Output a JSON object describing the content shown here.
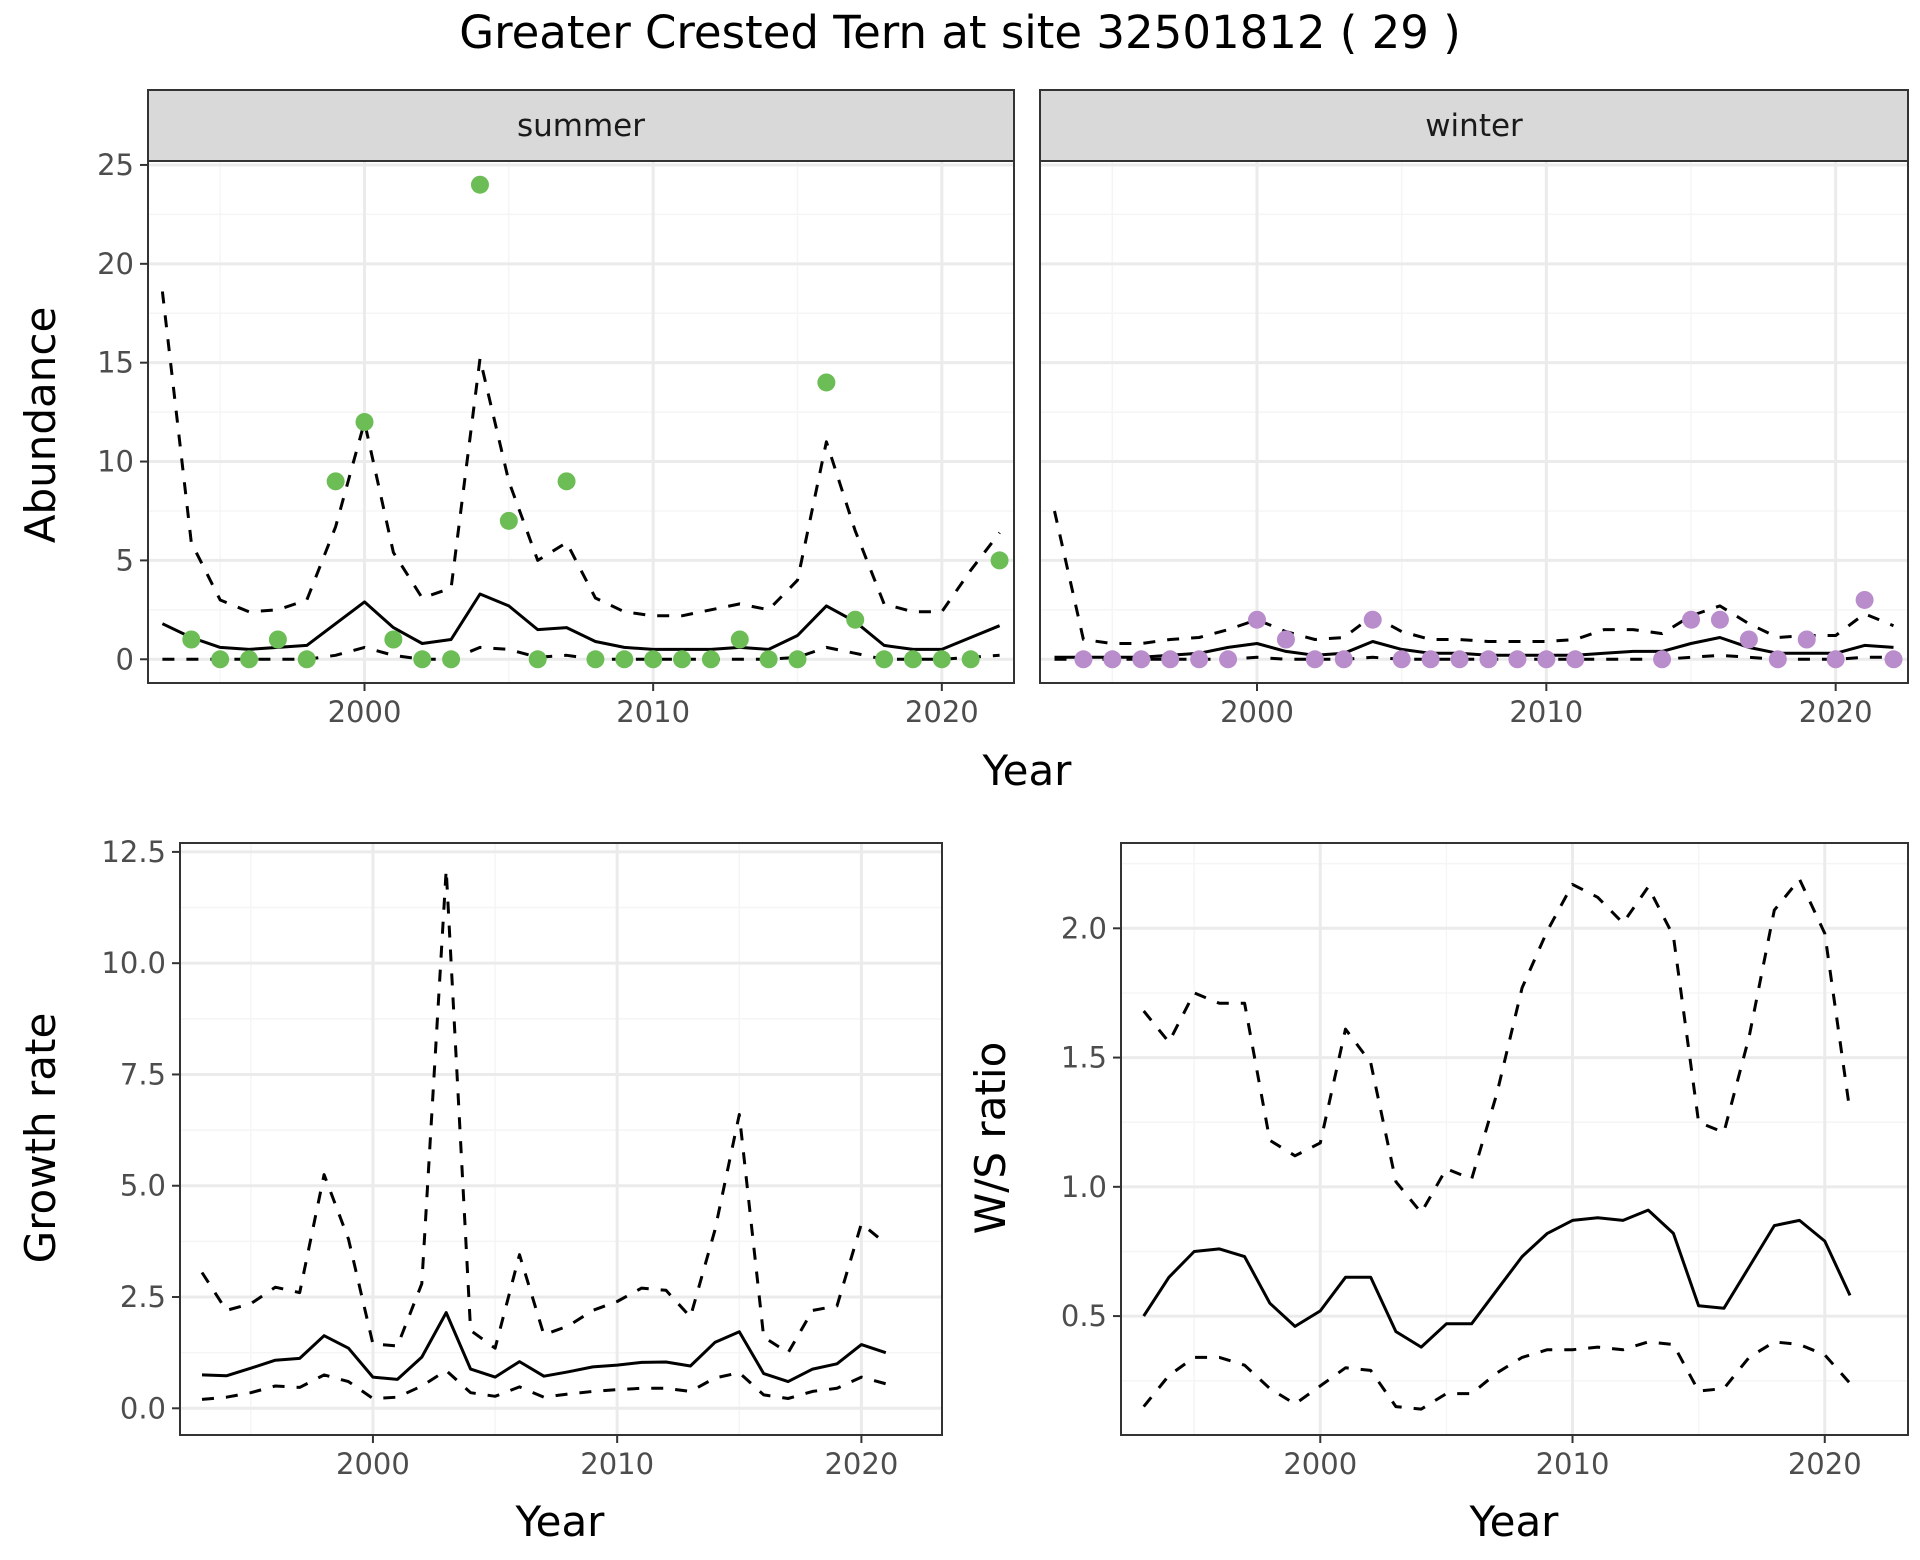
{
  "title": "Greater Crested Tern at site 32501812 ( 29 )",
  "colors": {
    "summer_points": "#6dbd57",
    "winter_points": "#b98ccb",
    "line": "#000000",
    "strip_bg": "#d9d9d9",
    "grid_major": "#ebebeb",
    "grid_minor": "#f5f5f5"
  },
  "chart_data": [
    {
      "id": "abundance-summer",
      "type": "line",
      "panel": "summer",
      "xlabel": "Year",
      "ylabel": "Abundance",
      "xlim": [
        1992.5,
        2022.5
      ],
      "ylim": [
        -1.2,
        25.2
      ],
      "xticks": [
        2000,
        2010,
        2020
      ],
      "yticks": [
        0,
        5,
        10,
        15,
        20,
        25
      ],
      "grid": true,
      "x": [
        1993,
        1994,
        1995,
        1996,
        1997,
        1998,
        1999,
        2000,
        2001,
        2002,
        2003,
        2004,
        2005,
        2006,
        2007,
        2008,
        2009,
        2010,
        2011,
        2012,
        2013,
        2014,
        2015,
        2016,
        2017,
        2018,
        2019,
        2020,
        2021,
        2022
      ],
      "series": [
        {
          "style": "solid",
          "values": [
            1.8,
            1.1,
            0.6,
            0.5,
            0.6,
            0.7,
            1.8,
            2.9,
            1.6,
            0.8,
            1.0,
            3.3,
            2.7,
            1.5,
            1.6,
            0.9,
            0.6,
            0.5,
            0.5,
            0.5,
            0.6,
            0.5,
            1.2,
            2.7,
            1.9,
            0.7,
            0.5,
            0.5,
            1.1,
            1.7
          ]
        },
        {
          "style": "dashed",
          "values": [
            18.6,
            5.9,
            3.0,
            2.4,
            2.5,
            3.0,
            6.7,
            12.0,
            5.4,
            3.1,
            3.6,
            15.2,
            9.0,
            5.0,
            5.9,
            3.1,
            2.4,
            2.2,
            2.2,
            2.5,
            2.8,
            2.5,
            4.0,
            11.0,
            6.5,
            2.8,
            2.4,
            2.4,
            4.5,
            6.4
          ]
        },
        {
          "style": "dashed",
          "values": [
            0.0,
            0.0,
            0.0,
            0.0,
            0.0,
            0.0,
            0.2,
            0.6,
            0.2,
            0.0,
            0.0,
            0.6,
            0.5,
            0.1,
            0.2,
            0.0,
            0.0,
            0.0,
            0.0,
            0.0,
            0.0,
            0.0,
            0.1,
            0.6,
            0.3,
            0.0,
            0.0,
            0.0,
            0.1,
            0.2
          ]
        }
      ],
      "points": {
        "x": [
          1994,
          1995,
          1996,
          1997,
          1998,
          1999,
          2000,
          2001,
          2002,
          2003,
          2004,
          2005,
          2006,
          2007,
          2008,
          2009,
          2010,
          2011,
          2012,
          2013,
          2014,
          2015,
          2016,
          2017,
          2018,
          2019,
          2020,
          2021,
          2022
        ],
        "values": [
          1,
          0,
          0,
          1,
          0,
          9,
          12,
          1,
          0,
          0,
          24,
          7,
          0,
          9,
          0,
          0,
          0,
          0,
          0,
          1,
          0,
          0,
          14,
          2,
          0,
          0,
          0,
          0,
          5
        ]
      }
    },
    {
      "id": "abundance-winter",
      "type": "line",
      "panel": "winter",
      "xlabel": "Year",
      "ylabel": "Abundance",
      "xlim": [
        1992.5,
        2022.5
      ],
      "ylim": [
        -1.2,
        25.2
      ],
      "xticks": [
        2000,
        2010,
        2020
      ],
      "grid": true,
      "x": [
        1993,
        1994,
        1995,
        1996,
        1997,
        1998,
        1999,
        2000,
        2001,
        2002,
        2003,
        2004,
        2005,
        2006,
        2007,
        2008,
        2009,
        2010,
        2011,
        2012,
        2013,
        2014,
        2015,
        2016,
        2017,
        2018,
        2019,
        2020,
        2021,
        2022
      ],
      "series": [
        {
          "style": "solid",
          "values": [
            0.1,
            0.1,
            0.1,
            0.1,
            0.2,
            0.3,
            0.6,
            0.8,
            0.4,
            0.2,
            0.3,
            0.9,
            0.5,
            0.3,
            0.3,
            0.2,
            0.2,
            0.2,
            0.2,
            0.3,
            0.4,
            0.4,
            0.8,
            1.1,
            0.6,
            0.3,
            0.3,
            0.3,
            0.7,
            0.6
          ]
        },
        {
          "style": "dashed",
          "values": [
            7.5,
            1.0,
            0.8,
            0.8,
            1.0,
            1.1,
            1.5,
            2.0,
            1.4,
            1.0,
            1.1,
            2.2,
            1.4,
            1.0,
            1.0,
            0.9,
            0.9,
            0.9,
            1.0,
            1.5,
            1.5,
            1.3,
            2.2,
            2.7,
            1.8,
            1.1,
            1.2,
            1.2,
            2.3,
            1.7
          ]
        },
        {
          "style": "dashed",
          "values": [
            0.0,
            0.0,
            0.0,
            0.0,
            0.0,
            0.0,
            0.0,
            0.1,
            0.0,
            0.0,
            0.0,
            0.1,
            0.0,
            0.0,
            0.0,
            0.0,
            0.0,
            0.0,
            0.0,
            0.0,
            0.0,
            0.0,
            0.1,
            0.2,
            0.1,
            0.0,
            0.0,
            0.0,
            0.1,
            0.1
          ]
        }
      ],
      "points": {
        "x": [
          1994,
          1995,
          1996,
          1997,
          1998,
          1999,
          2000,
          2001,
          2002,
          2003,
          2004,
          2005,
          2006,
          2007,
          2008,
          2009,
          2010,
          2011,
          2014,
          2015,
          2016,
          2017,
          2018,
          2019,
          2020,
          2021,
          2022
        ],
        "values": [
          0,
          0,
          0,
          0,
          0,
          0,
          2,
          1,
          0,
          0,
          2,
          0,
          0,
          0,
          0,
          0,
          0,
          0,
          0,
          2,
          2,
          1,
          0,
          1,
          0,
          3,
          0
        ]
      }
    },
    {
      "id": "growth-rate",
      "type": "line",
      "xlabel": "Year",
      "ylabel": "Growth rate",
      "xlim": [
        1992.1,
        2023.3
      ],
      "ylim": [
        -0.6,
        12.7
      ],
      "xticks": [
        2000,
        2010,
        2020
      ],
      "yticks": [
        0.0,
        2.5,
        5.0,
        7.5,
        10.0,
        12.5
      ],
      "ytick_labels": [
        "0.0",
        "2.5",
        "5.0",
        "7.5",
        "10.0",
        "12.5"
      ],
      "grid": true,
      "x": [
        1993,
        1994,
        1995,
        1996,
        1997,
        1998,
        1999,
        2000,
        2001,
        2002,
        2003,
        2004,
        2005,
        2006,
        2007,
        2008,
        2009,
        2010,
        2011,
        2012,
        2013,
        2014,
        2015,
        2016,
        2017,
        2018,
        2019,
        2020,
        2021
      ],
      "series": [
        {
          "style": "solid",
          "values": [
            0.75,
            0.73,
            0.9,
            1.08,
            1.12,
            1.63,
            1.35,
            0.7,
            0.65,
            1.15,
            2.15,
            0.88,
            0.7,
            1.05,
            0.72,
            0.82,
            0.93,
            0.97,
            1.03,
            1.04,
            0.95,
            1.48,
            1.72,
            0.78,
            0.6,
            0.88,
            1.0,
            1.43,
            1.25
          ]
        },
        {
          "style": "dashed",
          "values": [
            3.05,
            2.2,
            2.35,
            2.72,
            2.6,
            5.25,
            3.8,
            1.45,
            1.4,
            2.8,
            12.1,
            1.75,
            1.35,
            3.45,
            1.65,
            1.85,
            2.2,
            2.4,
            2.7,
            2.65,
            2.05,
            4.0,
            6.6,
            1.6,
            1.25,
            2.2,
            2.3,
            4.15,
            3.7
          ]
        },
        {
          "style": "dashed",
          "values": [
            0.2,
            0.25,
            0.35,
            0.5,
            0.47,
            0.75,
            0.6,
            0.22,
            0.25,
            0.5,
            0.85,
            0.35,
            0.27,
            0.48,
            0.25,
            0.32,
            0.38,
            0.42,
            0.45,
            0.45,
            0.38,
            0.68,
            0.8,
            0.3,
            0.22,
            0.38,
            0.45,
            0.7,
            0.55
          ]
        }
      ]
    },
    {
      "id": "ws-ratio",
      "type": "line",
      "xlabel": "Year",
      "ylabel": "W/S ratio",
      "xlim": [
        1992.1,
        2023.3
      ],
      "ylim": [
        0.04,
        2.33
      ],
      "xticks": [
        2000,
        2010,
        2020
      ],
      "yticks": [
        0.5,
        1.0,
        1.5,
        2.0
      ],
      "ytick_labels": [
        "0.5",
        "1.0",
        "1.5",
        "2.0"
      ],
      "grid": true,
      "x": [
        1993,
        1994,
        1995,
        1996,
        1997,
        1998,
        1999,
        2000,
        2001,
        2002,
        2003,
        2004,
        2005,
        2006,
        2007,
        2008,
        2009,
        2010,
        2011,
        2012,
        2013,
        2014,
        2015,
        2016,
        2017,
        2018,
        2019,
        2020,
        2021
      ],
      "series": [
        {
          "style": "solid",
          "values": [
            0.5,
            0.65,
            0.75,
            0.76,
            0.73,
            0.55,
            0.46,
            0.52,
            0.65,
            0.65,
            0.44,
            0.38,
            0.47,
            0.47,
            0.6,
            0.73,
            0.82,
            0.87,
            0.88,
            0.87,
            0.91,
            0.82,
            0.54,
            0.53,
            0.69,
            0.85,
            0.87,
            0.79,
            0.58
          ]
        },
        {
          "style": "dashed",
          "values": [
            1.68,
            1.56,
            1.75,
            1.71,
            1.71,
            1.18,
            1.12,
            1.17,
            1.61,
            1.48,
            1.02,
            0.9,
            1.07,
            1.03,
            1.36,
            1.77,
            1.99,
            2.17,
            2.12,
            2.02,
            2.16,
            1.97,
            1.25,
            1.21,
            1.58,
            2.07,
            2.19,
            1.98,
            1.29
          ]
        },
        {
          "style": "dashed",
          "values": [
            0.15,
            0.27,
            0.34,
            0.34,
            0.31,
            0.22,
            0.16,
            0.23,
            0.3,
            0.29,
            0.15,
            0.14,
            0.2,
            0.2,
            0.28,
            0.34,
            0.37,
            0.37,
            0.38,
            0.37,
            0.4,
            0.39,
            0.21,
            0.22,
            0.34,
            0.4,
            0.39,
            0.35,
            0.24
          ]
        }
      ]
    }
  ],
  "labels": {
    "strip_summer": "summer",
    "strip_winter": "winter",
    "top_xlabel": "Year",
    "top_ylabel": "Abundance",
    "bl_xlabel": "Year",
    "bl_ylabel": "Growth rate",
    "br_xlabel": "Year",
    "br_ylabel": "W/S ratio"
  }
}
